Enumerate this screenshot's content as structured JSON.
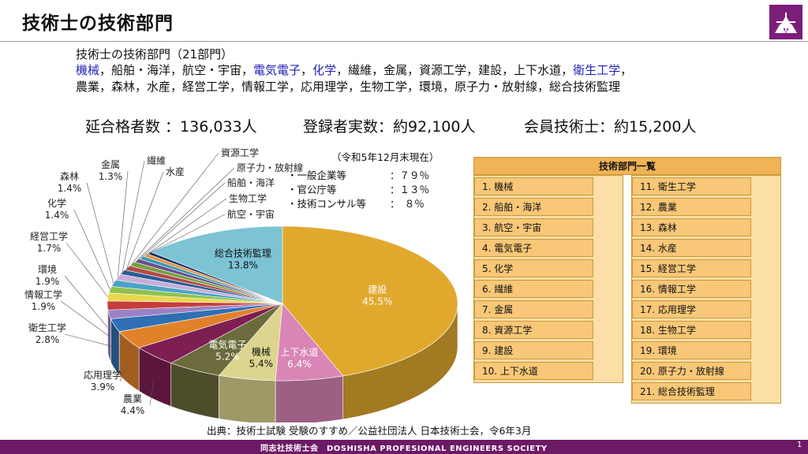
{
  "title": "技術士の技術部門",
  "intro": {
    "heading": "技術士の技術部門（21部門）",
    "line1": [
      {
        "text": "機械",
        "hl": true
      },
      {
        "text": "，船舶・海洋，航空・宇宙，",
        "hl": false
      },
      {
        "text": "電気電子",
        "hl": true
      },
      {
        "text": "，",
        "hl": false
      },
      {
        "text": "化学",
        "hl": true
      },
      {
        "text": "，繊維，金属，資源工学，建設，上下水道，",
        "hl": false
      },
      {
        "text": "衛生工学",
        "hl": true
      },
      {
        "text": "，",
        "hl": false
      }
    ],
    "line2": "農業，森林，水産，経営工学，情報工学，応用理学，生物工学，環境，原子力・放射線，総合技術監理"
  },
  "stats": {
    "passers": "延合格者数 ：136,033人",
    "registered": "登録者実数：約92,100人",
    "members": "会員技術士：約15,200人"
  },
  "breakdown": {
    "as_of": "（令和5年12月末現在）",
    "rows": [
      {
        "label": "・一般企業等",
        "value": "：７９％"
      },
      {
        "label": "・官公庁等",
        "value": "：１３％"
      },
      {
        "label": "・技術コンサル等",
        "value": "：　８％"
      }
    ]
  },
  "chart_data": {
    "type": "pie",
    "slices": [
      {
        "name": "建設",
        "value": 45.5,
        "label": "45.5%",
        "color": "#e0a92e"
      },
      {
        "name": "上下水道",
        "value": 6.4,
        "label": "6.4%",
        "color": "#d986b6"
      },
      {
        "name": "機械",
        "value": 5.4,
        "label": "5.4%",
        "color": "#dcd58f"
      },
      {
        "name": "電気電子",
        "value": 5.2,
        "label": "5.2%",
        "color": "#6b6b3d"
      },
      {
        "name": "農業",
        "value": 4.4,
        "label": "4.4%",
        "color": "#7e1e53"
      },
      {
        "name": "応用理学",
        "value": 3.9,
        "label": "3.9%",
        "color": "#e1822b"
      },
      {
        "name": "衛生工学",
        "value": 2.8,
        "label": "2.8%",
        "color": "#2f6fb3"
      },
      {
        "name": "情報工学",
        "value": 1.9,
        "label": "1.9%",
        "color": "#9b82c4"
      },
      {
        "name": "環境",
        "value": 1.9,
        "label": "1.9%",
        "color": "#c63c3c"
      },
      {
        "name": "経営工学",
        "value": 1.7,
        "label": "1.7%",
        "color": "#e9d84c"
      },
      {
        "name": "化学",
        "value": 1.4,
        "label": "1.4%",
        "color": "#8fc050"
      },
      {
        "name": "森林",
        "value": 1.4,
        "label": "1.4%",
        "color": "#4aa3c7"
      },
      {
        "name": "金属",
        "value": 1.3,
        "label": "1.3%",
        "color": "#c6aed6"
      },
      {
        "name": "繊維",
        "value": 1.0,
        "label": "",
        "color": "#2d5b95"
      },
      {
        "name": "水産",
        "value": 1.0,
        "label": "",
        "color": "#b34a48"
      },
      {
        "name": "資源工学",
        "value": 0.9,
        "label": "",
        "color": "#78a040"
      },
      {
        "name": "原子力・放射線",
        "value": 0.8,
        "label": "",
        "color": "#6a4e8e"
      },
      {
        "name": "船舶・海洋",
        "value": 0.7,
        "label": "",
        "color": "#3a9ab2"
      },
      {
        "name": "生物工学",
        "value": 0.6,
        "label": "",
        "color": "#e5933e"
      },
      {
        "name": "航空・宇宙",
        "value": 0.5,
        "label": "",
        "color": "#1e2f60"
      },
      {
        "name": "総合技術監理",
        "value": 13.8,
        "label": "13.8%",
        "color": "#7cc3d4"
      }
    ]
  },
  "dept_list": {
    "header": "技術部門一覧",
    "left": [
      "1. 機械",
      "2. 船舶・海洋",
      "3. 航空・宇宙",
      "4. 電気電子",
      "5. 化学",
      "6. 繊維",
      "7. 金属",
      "8. 資源工学",
      "9. 建設",
      "10. 上下水道"
    ],
    "right": [
      "11. 衛生工学",
      "12. 農業",
      "13. 森林",
      "14. 水産",
      "15. 経営工学",
      "16. 情報工学",
      "17. 応用理学",
      "18. 生物工学",
      "19. 環境",
      "20. 原子力・放射線",
      "21. 総合技術監理"
    ]
  },
  "source": "出典：技術士試験 受験のすすめ／公益社団法人 日本技術士会，令6年3月",
  "footer": {
    "org": "同志社技術士会　DOSHISHA PROFESIONAL ENGINEERS SOCIETY",
    "page": "1"
  },
  "colors": {
    "brand": "#6d1a66",
    "table_cell": "#f8c777",
    "table_header": "#f0b355"
  }
}
